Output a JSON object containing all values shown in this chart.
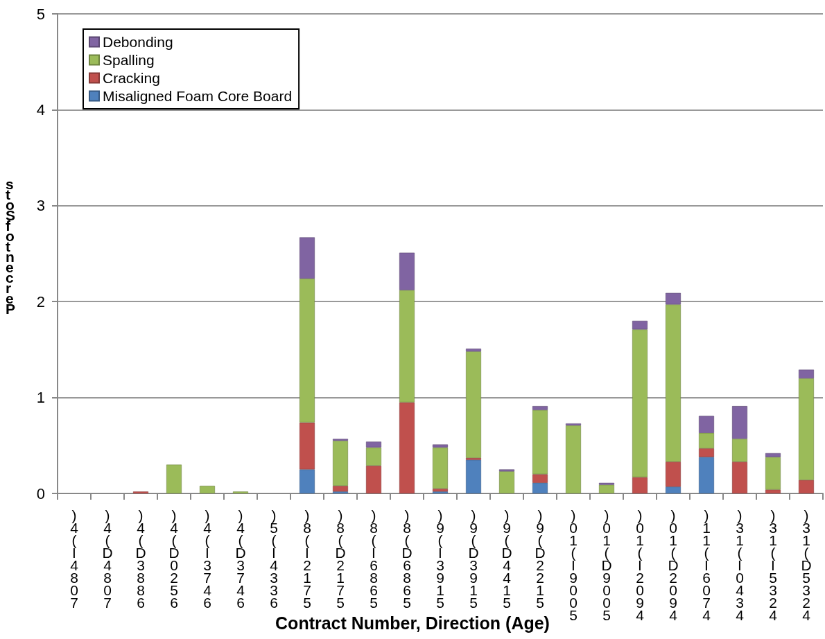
{
  "chart_data": {
    "type": "bar",
    "stacked": true,
    "xlabel": "Contract Number, Direction (Age)",
    "ylabel": "stoSfotnecreP",
    "categories": [
      ")4(I4807",
      ")4(D4807",
      ")4(D3886",
      ")4(D0256",
      ")4(I3746",
      ")4(D3746",
      ")5(I4336",
      ")8(I2175",
      ")8(D2175",
      ")8(I6865",
      ")8(D6865",
      ")9(I3915",
      ")9(D3915",
      ")9(D4415",
      ")9(D2215",
      ")01(I9005",
      ")01(D9005",
      ")01(I2094",
      ")01(D2094",
      ")11(I6074",
      ")31(I0434",
      ")31(I5324",
      ")31(D5324"
    ],
    "series": [
      {
        "name": "Misaligned Foam Core Board",
        "color": "#4f81bd",
        "values": [
          null,
          null,
          null,
          null,
          null,
          null,
          null,
          0.25,
          0.02,
          null,
          null,
          0.02,
          0.35,
          null,
          0.11,
          null,
          null,
          null,
          0.07,
          0.38,
          null,
          null,
          null
        ]
      },
      {
        "name": "Cracking",
        "color": "#c0504d",
        "values": [
          null,
          null,
          0.02,
          null,
          null,
          null,
          null,
          0.49,
          0.06,
          0.29,
          0.95,
          0.03,
          0.02,
          null,
          0.09,
          null,
          null,
          0.17,
          0.26,
          0.09,
          0.33,
          0.04,
          0.14
        ]
      },
      {
        "name": "Spalling",
        "color": "#9bbb59",
        "values": [
          null,
          null,
          null,
          0.3,
          0.08,
          0.02,
          null,
          1.5,
          0.47,
          0.19,
          1.17,
          0.43,
          1.11,
          0.23,
          0.67,
          0.71,
          0.09,
          1.54,
          1.64,
          0.16,
          0.24,
          0.34,
          1.06
        ]
      },
      {
        "name": "Debonding",
        "color": "#8064a2",
        "values": [
          null,
          null,
          null,
          null,
          null,
          null,
          null,
          0.43,
          0.02,
          0.06,
          0.39,
          0.03,
          0.03,
          0.02,
          0.04,
          0.02,
          0.02,
          0.09,
          0.12,
          0.18,
          0.34,
          0.04,
          0.09
        ]
      }
    ],
    "ylim": [
      0,
      5
    ],
    "yticks": [
      0,
      1,
      2,
      3,
      4,
      5
    ],
    "grid": "y",
    "legend": "top left"
  }
}
